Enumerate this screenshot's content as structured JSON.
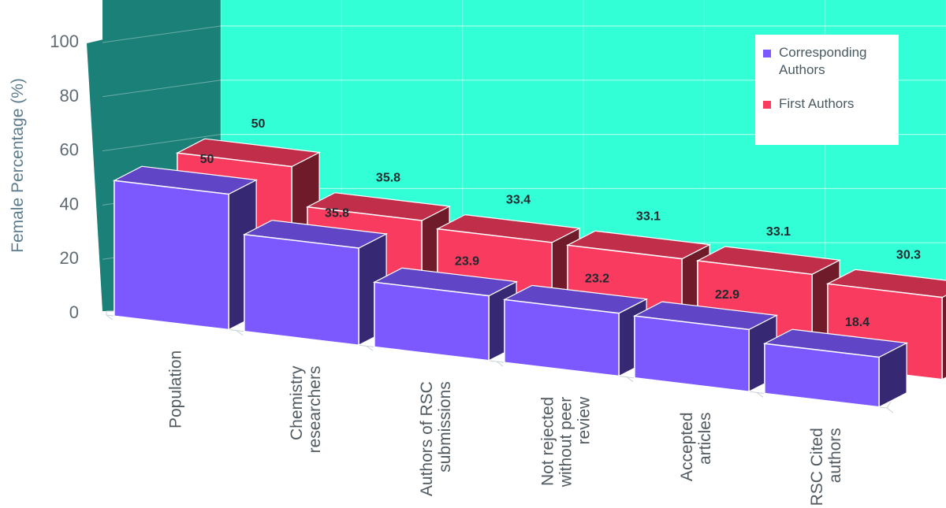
{
  "chart_data": {
    "type": "bar",
    "categories": [
      "Population",
      "Chemistry researchers",
      "Authors of RSC submissions",
      "Not rejected without peer review",
      "Accepted articles",
      "RSC Cited authors"
    ],
    "category_label_lines": [
      [
        "Population"
      ],
      [
        "Chemistry",
        "researchers"
      ],
      [
        "Authors of RSC",
        "submissions"
      ],
      [
        "Not rejected",
        "without peer",
        "review"
      ],
      [
        "Accepted",
        "articles"
      ],
      [
        "RSC Cited",
        "authors"
      ]
    ],
    "series": [
      {
        "name": "Corresponding Authors",
        "legend_lines": [
          "Corresponding",
          "Authors"
        ],
        "values": [
          50,
          35.8,
          23.9,
          23.2,
          22.9,
          18.4
        ],
        "color": "#7b58ff"
      },
      {
        "name": "First Authors",
        "legend_lines": [
          "First Authors"
        ],
        "values": [
          50,
          35.8,
          33.4,
          33.1,
          33.1,
          30.3
        ],
        "color": "#f83b5e"
      }
    ],
    "ylabel": "Female Percentage (%)",
    "xlabel": "",
    "ylim": [
      0,
      100
    ],
    "yticks": [
      "0",
      "20",
      "40",
      "60",
      "80",
      "100"
    ],
    "grid": true,
    "legend_position": "top-right",
    "style": "3d-clustered-depth",
    "wall_color": "#33ffd6",
    "side_wall_color": "#1a8078"
  }
}
